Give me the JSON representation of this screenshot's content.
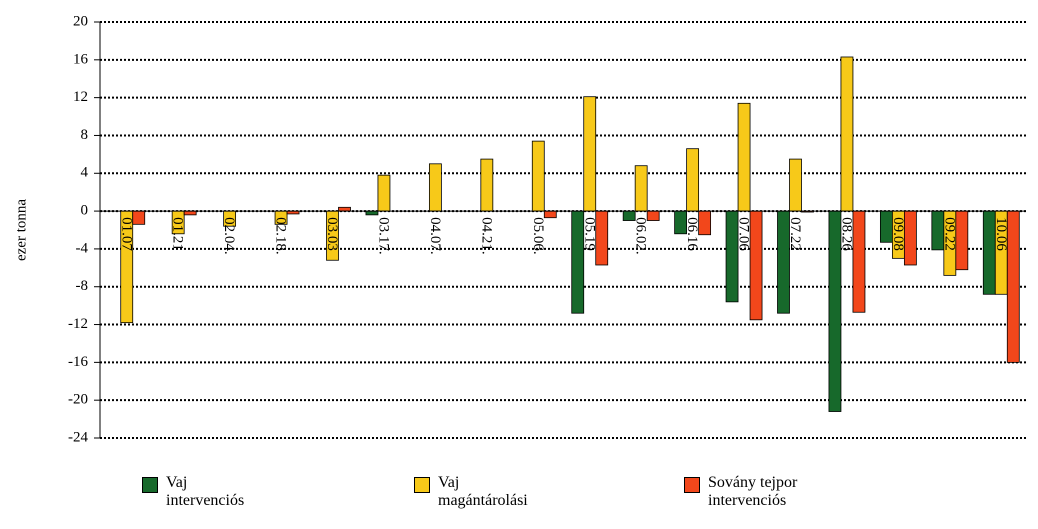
{
  "chart_data": {
    "type": "bar",
    "y_label": "ezer tonna",
    "categories": [
      "01.07",
      "01.21",
      "02.04.",
      "02.18.",
      "03.03",
      "03.17.",
      "04.07.",
      "04.21.",
      "05.06.",
      "05.19",
      "06.02.",
      "06.16",
      "07.06",
      "07.22",
      "08.26",
      "09.08",
      "09.22",
      "10.06"
    ],
    "series": [
      {
        "name": "Vaj intervenciós",
        "color": "#17692b",
        "values": [
          0,
          0,
          0,
          0,
          0,
          -0.4,
          0,
          0,
          0,
          -10.8,
          -1.0,
          -2.4,
          -9.6,
          -10.8,
          -21.2,
          -3.3,
          -4.1,
          -8.8
        ]
      },
      {
        "name": "Vaj magántárolási",
        "color": "#f7c919",
        "values": [
          -11.8,
          -2.4,
          -1.6,
          -1.4,
          -5.2,
          3.8,
          5.0,
          5.5,
          7.4,
          12.1,
          4.8,
          6.6,
          11.4,
          5.5,
          16.3,
          -5.0,
          -6.8,
          -8.8
        ]
      },
      {
        "name": "Sovány tejpor intervenciós",
        "color": "#f2471b",
        "values": [
          -1.4,
          -0.4,
          0,
          -0.3,
          0.4,
          0,
          0,
          0,
          -0.7,
          -5.7,
          -1.0,
          -2.5,
          -11.5,
          -0.1,
          -10.7,
          -5.7,
          -6.2,
          -16.0
        ]
      }
    ],
    "ylim": [
      -24,
      20
    ],
    "yticks": [
      -24,
      -20,
      -16,
      -12,
      -8,
      -4,
      0,
      4,
      8,
      12,
      16,
      20
    ],
    "grid": true
  }
}
